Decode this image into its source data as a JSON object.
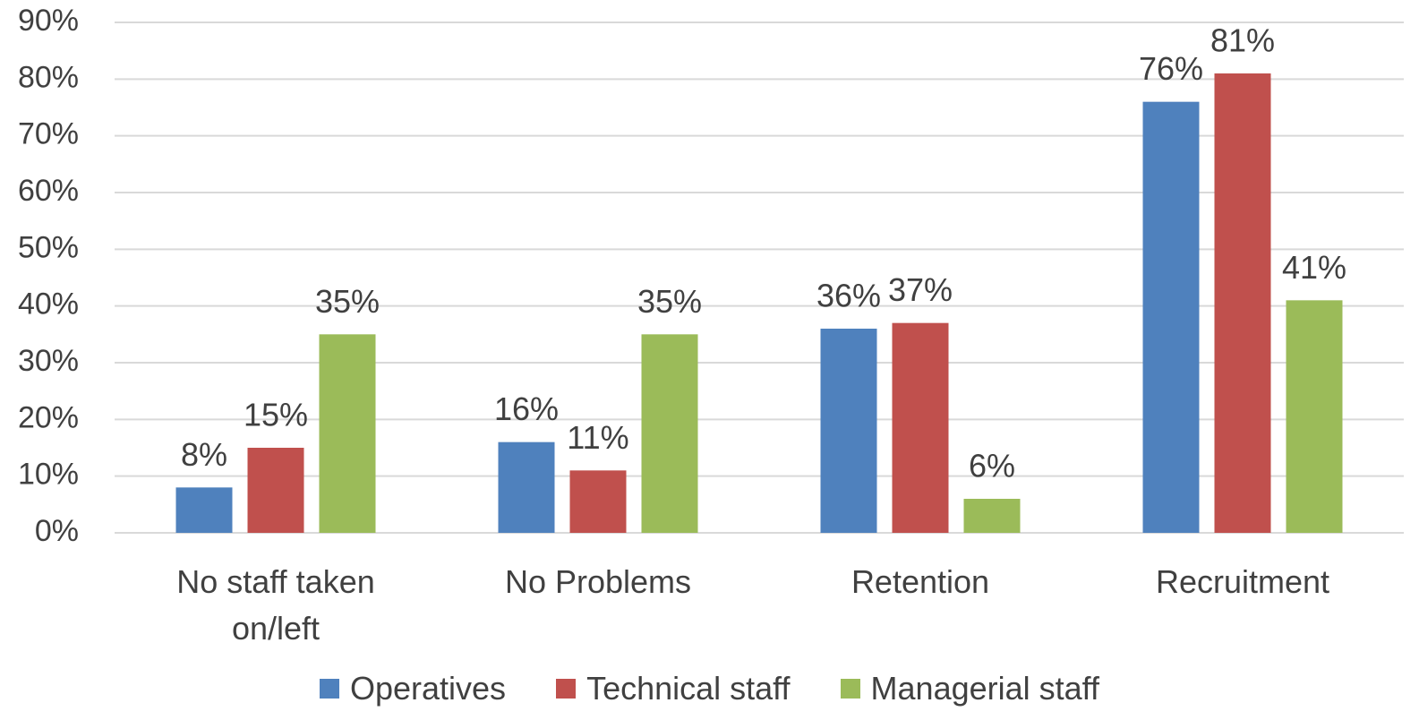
{
  "chart_data": {
    "type": "bar",
    "categories": [
      "No staff taken on/left",
      "No Problems",
      "Retention",
      "Recruitment"
    ],
    "series": [
      {
        "name": "Operatives",
        "color": "#4f81bd",
        "values": [
          8,
          16,
          36,
          76
        ],
        "value_labels": [
          "8%",
          "16%",
          "36%",
          "76%"
        ]
      },
      {
        "name": "Technical staff",
        "color": "#c0504d",
        "values": [
          15,
          11,
          37,
          81
        ],
        "value_labels": [
          "15%",
          "11%",
          "37%",
          "81%"
        ]
      },
      {
        "name": "Managerial staff",
        "color": "#9bbb59",
        "values": [
          35,
          35,
          6,
          41
        ],
        "value_labels": [
          "35%",
          "35%",
          "6%",
          "41%"
        ]
      }
    ],
    "ylim": [
      0,
      90
    ],
    "yticks": [
      {
        "value": 0,
        "label": "0%"
      },
      {
        "value": 10,
        "label": "10%"
      },
      {
        "value": 20,
        "label": "20%"
      },
      {
        "value": 30,
        "label": "30%"
      },
      {
        "value": 40,
        "label": "40%"
      },
      {
        "value": 50,
        "label": "50%"
      },
      {
        "value": 60,
        "label": "60%"
      },
      {
        "value": 70,
        "label": "70%"
      },
      {
        "value": 80,
        "label": "80%"
      },
      {
        "value": 90,
        "label": "90%"
      }
    ],
    "grid": true,
    "legend": "bottom"
  }
}
